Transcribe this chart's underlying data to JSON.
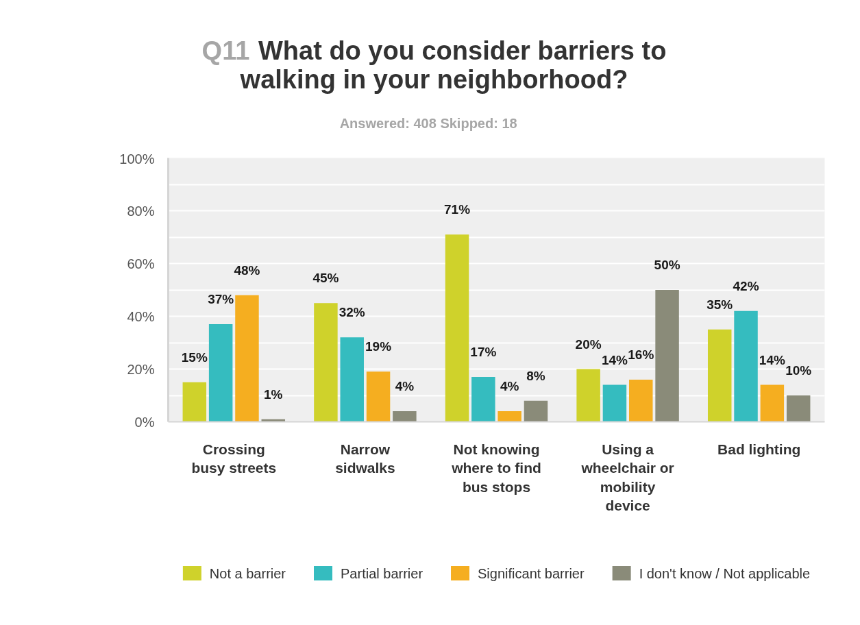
{
  "chart_data": {
    "type": "bar",
    "title": "Q11 What do you consider barriers to walking in your neighborhood?",
    "subtitle": "Answered: 408    Skipped: 18",
    "categories": [
      "Crossing busy streets",
      "Narrow sidwalks",
      "Not knowing where to find bus stops",
      "Using a wheelchair or mobility device",
      "Bad lighting"
    ],
    "series": [
      {
        "name": "Not a barrier",
        "color": "#cfd22b",
        "values": [
          15,
          45,
          71,
          20,
          35
        ],
        "value_labels": [
          "15%",
          "45%",
          "71%",
          "20%",
          "35%"
        ]
      },
      {
        "name": "Partial barrier",
        "color": "#35bcbf",
        "values": [
          37,
          32,
          17,
          14,
          42
        ],
        "value_labels": [
          "37%",
          "32%",
          "17%",
          "14%",
          "42%"
        ]
      },
      {
        "name": "Significant barrier",
        "color": "#f5ae20",
        "values": [
          48,
          19,
          4,
          16,
          14
        ],
        "value_labels": [
          "48%",
          "19%",
          "4%",
          "16%",
          "14%"
        ]
      },
      {
        "name": "I don't know / Not applicable",
        "color": "#8a8b79",
        "values": [
          1,
          4,
          8,
          50,
          10
        ],
        "value_labels": [
          "1%",
          "4%",
          "8%",
          "50%",
          "10%"
        ]
      }
    ],
    "ylim": [
      0,
      100
    ],
    "yticks": [
      {
        "value": 0,
        "label": "0%"
      },
      {
        "value": 10,
        "label": null
      },
      {
        "value": 20,
        "label": "20%"
      },
      {
        "value": 30,
        "label": null
      },
      {
        "value": 40,
        "label": "40%"
      },
      {
        "value": 50,
        "label": null
      },
      {
        "value": 60,
        "label": "60%"
      },
      {
        "value": 70,
        "label": null
      },
      {
        "value": 80,
        "label": "80%"
      },
      {
        "value": 90,
        "label": null
      },
      {
        "value": 100,
        "label": "100%"
      }
    ],
    "grid": "y",
    "legend": "bottom"
  }
}
